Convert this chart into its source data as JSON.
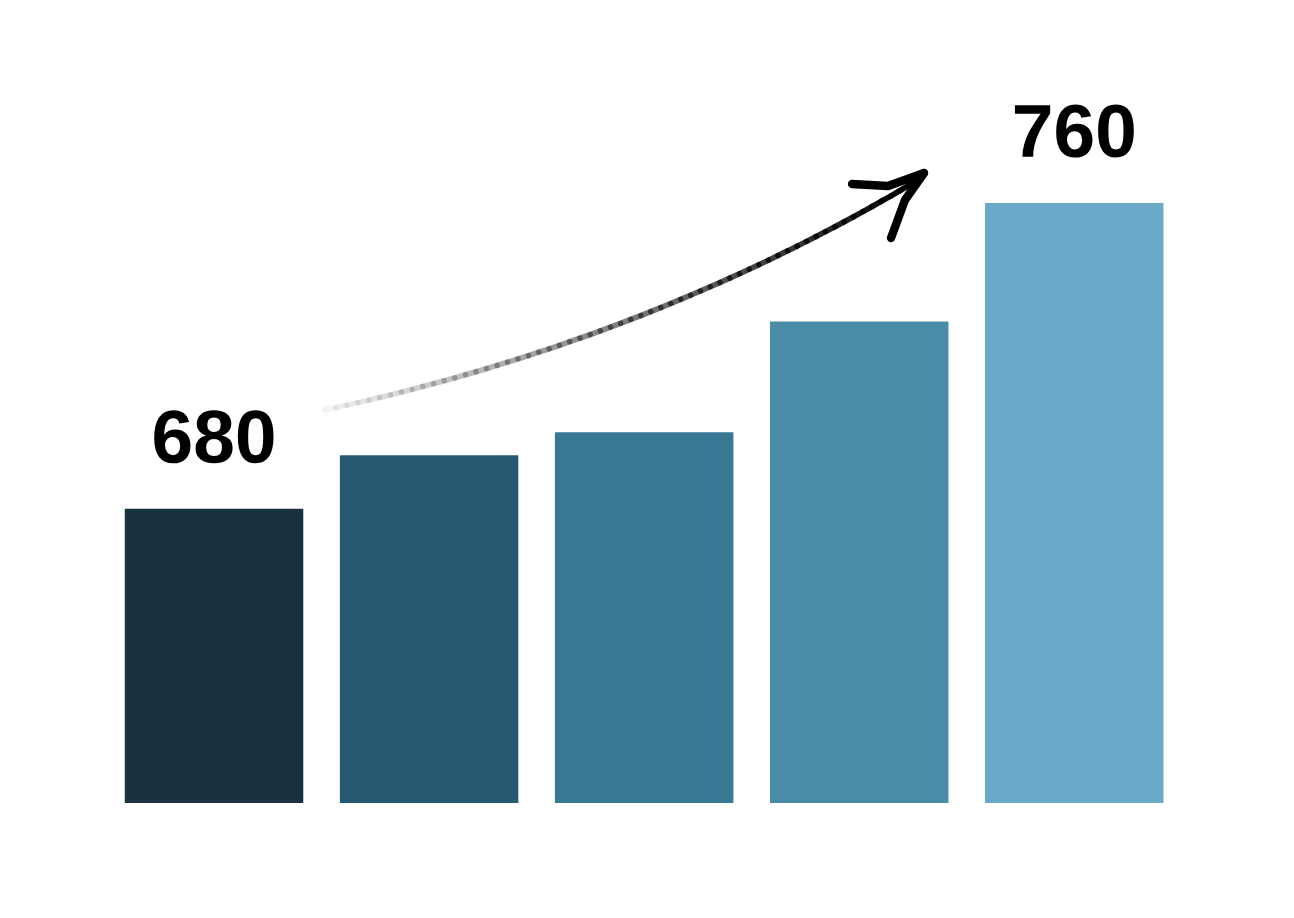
{
  "chart_data": {
    "type": "bar",
    "categories": [
      null,
      null,
      null,
      null,
      null
    ],
    "values": [
      680,
      694,
      700,
      729,
      760
    ],
    "value_labels": [
      "680",
      null,
      null,
      null,
      "760"
    ],
    "colors": [
      "#183240",
      "#265a70",
      "#387895",
      "#4a8ba8",
      "#6aaac8"
    ],
    "ylim": [
      603,
      760
    ],
    "grid": false,
    "legend": false
  }
}
